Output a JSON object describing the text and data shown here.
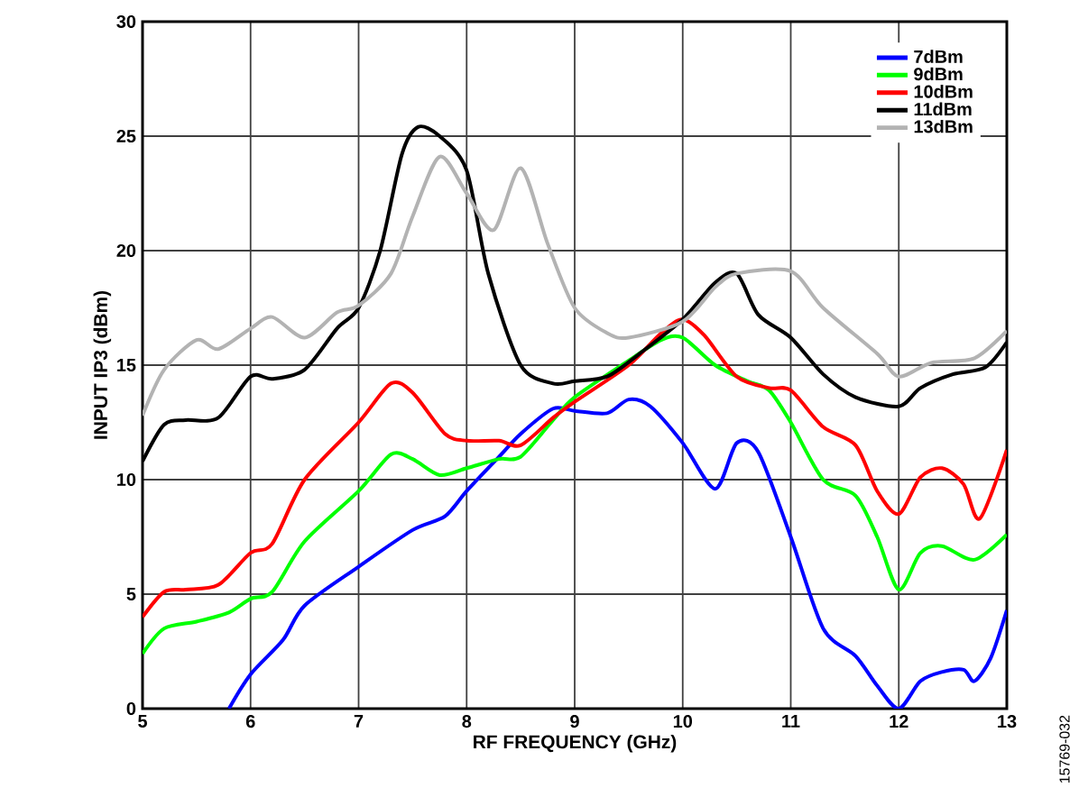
{
  "chart_data": {
    "type": "line",
    "xlabel": "RF FREQUENCY (GHz)",
    "ylabel": "INPUT IP3 (dBm)",
    "xlim": [
      5,
      13
    ],
    "ylim": [
      0,
      30
    ],
    "xticks": [
      5,
      6,
      7,
      8,
      9,
      10,
      11,
      12,
      13
    ],
    "yticks": [
      0,
      5,
      10,
      15,
      20,
      25,
      30
    ],
    "grid": true,
    "legend": "top right",
    "marker": "none",
    "line_style": "solid",
    "annotations": [
      "15769-032"
    ],
    "series": [
      {
        "name": "7dBm",
        "color": "#0000ff",
        "x": [
          5.8,
          6.0,
          6.3,
          6.5,
          7.0,
          7.5,
          7.8,
          8.0,
          8.3,
          8.5,
          8.8,
          9.0,
          9.3,
          9.5,
          9.7,
          10.0,
          10.3,
          10.5,
          10.7,
          11.0,
          11.3,
          11.6,
          11.8,
          12.0,
          12.2,
          12.4,
          12.6,
          12.7,
          12.85,
          13.0
        ],
        "values": [
          0,
          1.5,
          3,
          4.5,
          6.2,
          7.8,
          8.4,
          9.5,
          11,
          12,
          13.1,
          13,
          12.9,
          13.5,
          13.2,
          11.6,
          9.6,
          11.6,
          11.2,
          7.5,
          3.5,
          2.3,
          1,
          0,
          1.2,
          1.6,
          1.7,
          1.2,
          2.2,
          4.3
        ]
      },
      {
        "name": "9dBm",
        "color": "#00ff00",
        "x": [
          5.0,
          5.2,
          5.5,
          5.8,
          6.0,
          6.2,
          6.5,
          7.0,
          7.3,
          7.5,
          7.75,
          8.0,
          8.3,
          8.5,
          8.8,
          9.0,
          9.5,
          9.8,
          10.0,
          10.3,
          10.6,
          10.8,
          11.0,
          11.3,
          11.6,
          11.8,
          12.0,
          12.2,
          12.4,
          12.7,
          13.0
        ],
        "values": [
          2.4,
          3.5,
          3.8,
          4.2,
          4.8,
          5.1,
          7.3,
          9.5,
          11.1,
          10.9,
          10.2,
          10.5,
          10.9,
          11,
          12.6,
          13.6,
          15.2,
          16.1,
          16.2,
          15,
          14.3,
          13.9,
          12.5,
          10,
          9.3,
          7.5,
          5.2,
          6.8,
          7.1,
          6.5,
          7.6
        ]
      },
      {
        "name": "10dBm",
        "color": "#ff0000",
        "x": [
          5.0,
          5.2,
          5.4,
          5.7,
          6.0,
          6.2,
          6.5,
          7.0,
          7.3,
          7.5,
          7.8,
          8.0,
          8.3,
          8.5,
          8.8,
          9.0,
          9.5,
          9.8,
          10.0,
          10.2,
          10.5,
          10.8,
          11.0,
          11.3,
          11.6,
          11.8,
          12.0,
          12.2,
          12.4,
          12.6,
          12.75,
          13.0
        ],
        "values": [
          4,
          5.1,
          5.2,
          5.4,
          6.8,
          7.2,
          10,
          12.5,
          14.2,
          13.8,
          12,
          11.7,
          11.7,
          11.5,
          12.7,
          13.4,
          15,
          16.4,
          17,
          16.3,
          14.5,
          14,
          13.9,
          12.3,
          11.5,
          9.5,
          8.5,
          10.1,
          10.5,
          9.8,
          8.3,
          11.3
        ]
      },
      {
        "name": "11dBm",
        "color": "#000000",
        "x": [
          5.0,
          5.2,
          5.4,
          5.7,
          6.0,
          6.2,
          6.5,
          6.8,
          7.0,
          7.2,
          7.4,
          7.55,
          7.75,
          8.0,
          8.2,
          8.5,
          8.8,
          9.0,
          9.3,
          9.6,
          10.0,
          10.3,
          10.5,
          10.7,
          11.0,
          11.3,
          11.6,
          12.0,
          12.2,
          12.5,
          12.8,
          13.0
        ],
        "values": [
          10.8,
          12.4,
          12.6,
          12.7,
          14.5,
          14.4,
          14.8,
          16.6,
          17.5,
          20,
          24.2,
          25.4,
          25,
          23.5,
          19,
          15,
          14.2,
          14.3,
          14.5,
          15.5,
          17,
          18.6,
          19,
          17.2,
          16.2,
          14.6,
          13.6,
          13.2,
          14,
          14.6,
          14.9,
          16
        ]
      },
      {
        "name": "13dBm",
        "color": "#b3b3b3",
        "x": [
          5.0,
          5.2,
          5.5,
          5.7,
          6.0,
          6.2,
          6.5,
          6.8,
          7.0,
          7.3,
          7.5,
          7.75,
          8.0,
          8.25,
          8.5,
          8.75,
          9.0,
          9.3,
          9.5,
          10.0,
          10.3,
          10.5,
          11.0,
          11.3,
          11.8,
          12.0,
          12.3,
          12.7,
          13.0
        ],
        "values": [
          12.8,
          14.8,
          16.1,
          15.7,
          16.6,
          17.1,
          16.2,
          17.3,
          17.6,
          19,
          21.5,
          24.1,
          22.5,
          20.9,
          23.6,
          20.3,
          17.5,
          16.4,
          16.2,
          16.9,
          18.4,
          19,
          19.1,
          17.5,
          15.5,
          14.5,
          15.1,
          15.3,
          16.5
        ]
      }
    ]
  }
}
